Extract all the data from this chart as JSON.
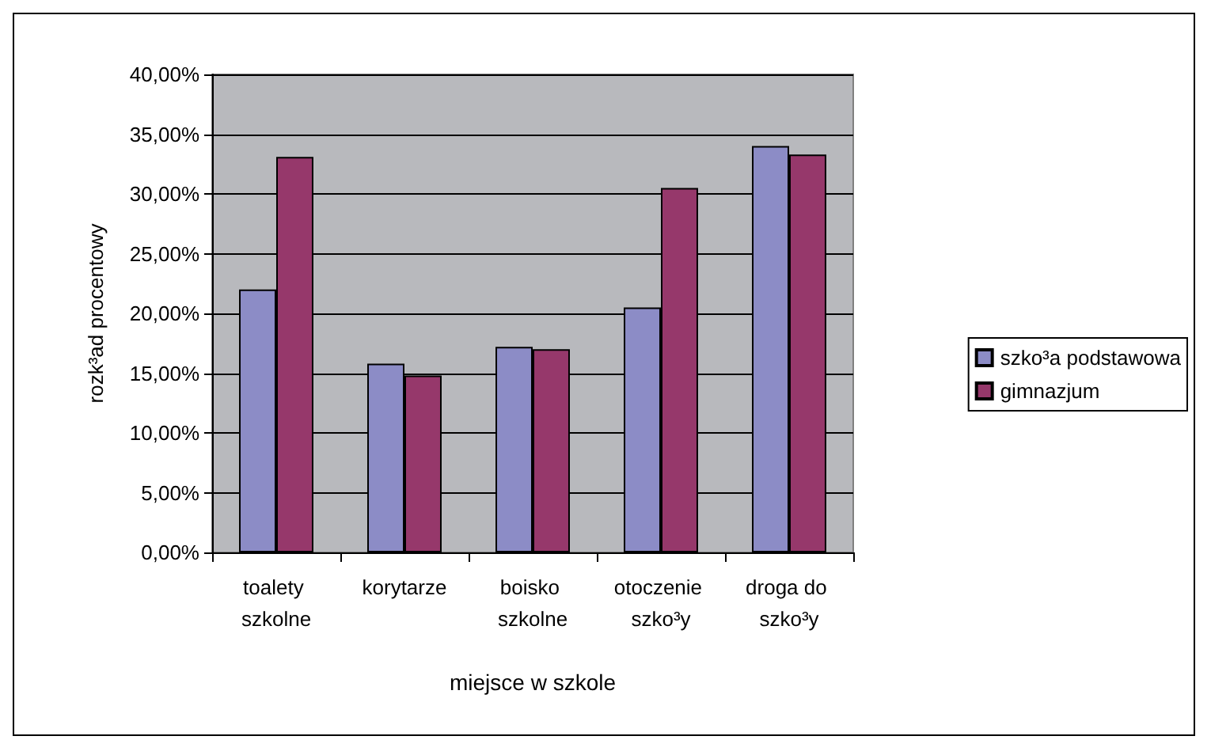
{
  "chart_data": {
    "type": "bar",
    "xlabel": "miejsce w szkole",
    "ylabel": "rozk³ad procentowy",
    "categories": [
      "toalety szkolne",
      "korytarze",
      "boisko szkolne",
      "otoczenie szko³y",
      "droga do szko³y"
    ],
    "series": [
      {
        "name": "szko³a podstawowa",
        "color": "#8c8cc6",
        "values": [
          22.0,
          15.8,
          17.2,
          20.5,
          34.0
        ]
      },
      {
        "name": "gimnazjum",
        "color": "#96386b",
        "values": [
          33.1,
          14.8,
          17.0,
          30.5,
          33.3
        ]
      }
    ],
    "ylim": [
      0,
      40
    ],
    "yticks": [
      {
        "value": 0,
        "label": "0,00%"
      },
      {
        "value": 5,
        "label": "5,00%"
      },
      {
        "value": 10,
        "label": "10,00%"
      },
      {
        "value": 15,
        "label": "15,00%"
      },
      {
        "value": 20,
        "label": "20,00%"
      },
      {
        "value": 25,
        "label": "25,00%"
      },
      {
        "value": 30,
        "label": "30,00%"
      },
      {
        "value": 35,
        "label": "35,00%"
      },
      {
        "value": 40,
        "label": "40,00%"
      }
    ],
    "grid": "y",
    "legend": "right"
  }
}
